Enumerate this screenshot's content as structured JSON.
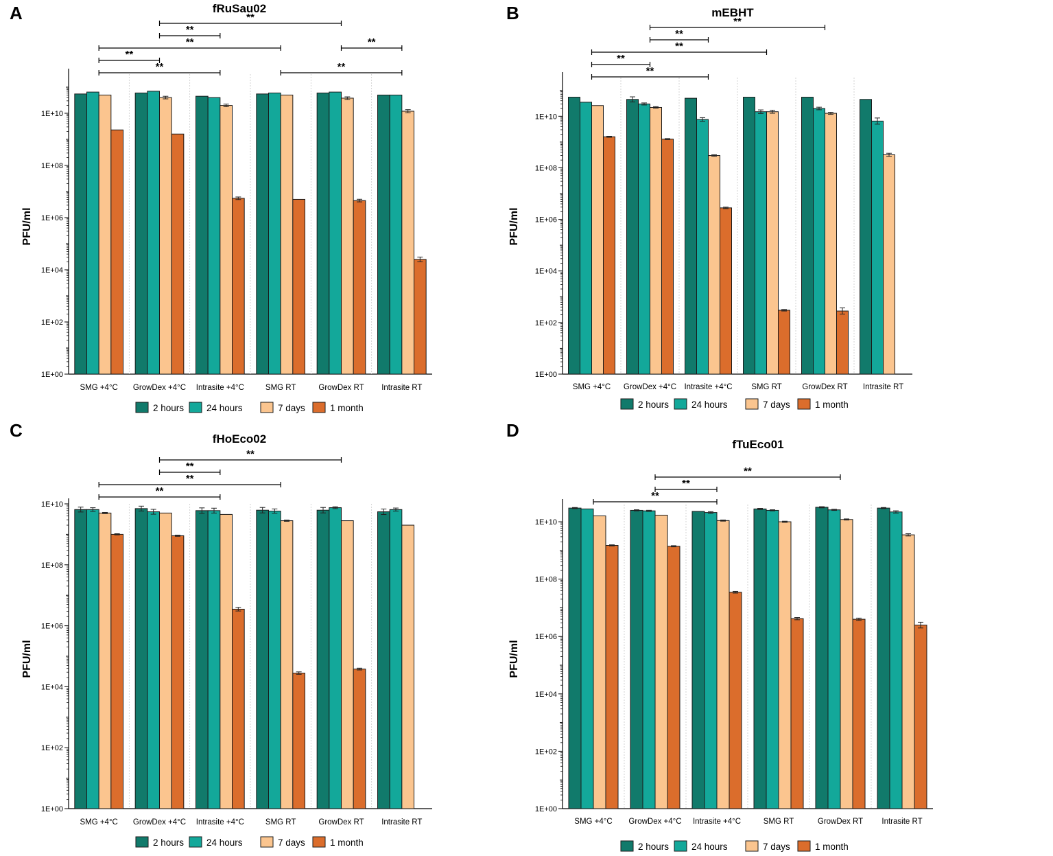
{
  "figure": {
    "ylabel": "PFU/ml",
    "categories": [
      "SMG +4°C",
      "GrowDex +4°C",
      "Intrasite +4°C",
      "SMG RT",
      "GrowDex RT",
      "Intrasite RT"
    ],
    "series": [
      "2 hours",
      "24 hours",
      "7 days",
      "1 month"
    ],
    "colors": {
      "2 hours": "#117a6b",
      "24 hours": "#13a89a",
      "7 days": "#fbc58f",
      "1 month": "#db6d2c"
    },
    "yticks": [
      "1E+00",
      "1E+02",
      "1E+04",
      "1E+06",
      "1E+08",
      "1E+10"
    ],
    "sig_label": "**"
  },
  "chart_data": [
    {
      "panel": "A",
      "title": "fRuSau02",
      "type": "bar",
      "yscale": "log",
      "ylim": [
        1,
        300000000000
      ],
      "ylabel": "PFU/ml",
      "categories": [
        "SMG +4°C",
        "GrowDex +4°C",
        "Intrasite +4°C",
        "SMG RT",
        "GrowDex RT",
        "Intrasite RT"
      ],
      "series": [
        {
          "name": "2 hours",
          "values": [
            55000000000.0,
            60000000000.0,
            45000000000.0,
            55000000000.0,
            60000000000.0,
            50000000000.0
          ],
          "errors": [
            0,
            0,
            0,
            0,
            0,
            0
          ]
        },
        {
          "name": "24 hours",
          "values": [
            65000000000.0,
            70000000000.0,
            40000000000.0,
            60000000000.0,
            65000000000.0,
            50000000000.0
          ],
          "errors": [
            0,
            0,
            0,
            0,
            0,
            0
          ]
        },
        {
          "name": "7 days",
          "values": [
            50000000000.0,
            40000000000.0,
            20000000000.0,
            50000000000.0,
            38000000000.0,
            12000000000.0
          ],
          "errors": [
            0,
            0.05,
            0.05,
            0,
            0.05,
            0.06
          ]
        },
        {
          "name": "1 month",
          "values": [
            2300000000.0,
            1600000000.0,
            5500000.0,
            5000000.0,
            4500000.0,
            25000.0
          ],
          "errors": [
            0,
            0,
            0.05,
            0,
            0.05,
            0.09
          ]
        }
      ],
      "significance": [
        {
          "from": 0,
          "to": 1,
          "level": 1,
          "label": "**"
        },
        {
          "from": 1,
          "to": 2,
          "level": 3,
          "label": "**"
        },
        {
          "from": 1,
          "to": 4,
          "level": 4,
          "label": "**"
        },
        {
          "from": 0,
          "to": 3,
          "level": 2,
          "label": "**"
        },
        {
          "from": 0,
          "to": 2,
          "level": 0,
          "label": "**"
        },
        {
          "from": 3,
          "to": 5,
          "level": 0,
          "label": "**"
        },
        {
          "from": 4,
          "to": 5,
          "level": 2,
          "label": "**"
        }
      ]
    },
    {
      "panel": "B",
      "title": "mEBHT",
      "type": "bar",
      "yscale": "log",
      "ylim": [
        1,
        300000000000
      ],
      "ylabel": "PFU/ml",
      "categories": [
        "SMG +4°C",
        "GrowDex +4°C",
        "Intrasite +4°C",
        "SMG RT",
        "GrowDex RT",
        "Intrasite RT"
      ],
      "series": [
        {
          "name": "2 hours",
          "values": [
            55000000000.0,
            45000000000.0,
            50000000000.0,
            55000000000.0,
            55000000000.0,
            45000000000.0
          ],
          "errors": [
            0,
            0.1,
            0,
            0,
            0,
            0
          ]
        },
        {
          "name": "24 hours",
          "values": [
            35000000000.0,
            30000000000.0,
            7500000000.0,
            15000000000.0,
            20000000000.0,
            6500000000.0
          ],
          "errors": [
            0,
            0.04,
            0.07,
            0.07,
            0.05,
            0.12
          ]
        },
        {
          "name": "7 days",
          "values": [
            26000000000.0,
            22000000000.0,
            300000000.0,
            15000000000.0,
            13000000000.0,
            320000000.0
          ],
          "errors": [
            0,
            0.03,
            0.03,
            0.06,
            0.04,
            0.06
          ]
        },
        {
          "name": "1 month",
          "values": [
            1600000000.0,
            1300000000.0,
            2800000.0,
            300,
            280,
            null
          ],
          "errors": [
            0.02,
            0.02,
            0.03,
            0.03,
            0.12,
            0
          ]
        }
      ],
      "significance": [
        {
          "from": 0,
          "to": 1,
          "level": 1,
          "label": "**"
        },
        {
          "from": 1,
          "to": 2,
          "level": 3,
          "label": "**"
        },
        {
          "from": 1,
          "to": 4,
          "level": 4,
          "label": "**"
        },
        {
          "from": 0,
          "to": 3,
          "level": 2,
          "label": "**"
        },
        {
          "from": 0,
          "to": 2,
          "level": 0,
          "label": "**"
        }
      ]
    },
    {
      "panel": "C",
      "title": "fHoEco02",
      "type": "bar",
      "yscale": "log",
      "ylim": [
        1,
        10000000000
      ],
      "ylabel": "PFU/ml",
      "categories": [
        "SMG +4°C",
        "GrowDex +4°C",
        "Intrasite +4°C",
        "SMG RT",
        "GrowDex RT",
        "Intrasite RT"
      ],
      "series": [
        {
          "name": "2 hours",
          "values": [
            6500000000.0,
            7000000000.0,
            6000000000.0,
            6200000000.0,
            6200000000.0,
            5500000000.0
          ],
          "errors": [
            0.08,
            0.08,
            0.09,
            0.09,
            0.09,
            0.09
          ]
        },
        {
          "name": "24 hours",
          "values": [
            6500000000.0,
            5500000000.0,
            6000000000.0,
            5800000000.0,
            7500000000.0,
            6500000000.0
          ],
          "errors": [
            0.06,
            0.08,
            0.08,
            0.07,
            0.03,
            0.05
          ]
        },
        {
          "name": "7 days",
          "values": [
            5000000000.0,
            5000000000.0,
            4500000000.0,
            2800000000.0,
            2800000000.0,
            2000000000.0
          ],
          "errors": [
            0.02,
            0,
            0,
            0.02,
            0,
            0
          ]
        },
        {
          "name": "1 month",
          "values": [
            1000000000.0,
            900000000.0,
            3500000.0,
            28000.0,
            38000.0,
            null
          ],
          "errors": [
            0.02,
            0.02,
            0.06,
            0.04,
            0.03,
            0
          ]
        }
      ],
      "significance": [
        {
          "from": 0,
          "to": 2,
          "level": 0,
          "label": "**"
        },
        {
          "from": 0,
          "to": 3,
          "level": 1,
          "label": "**"
        },
        {
          "from": 1,
          "to": 2,
          "level": 2,
          "label": "**"
        },
        {
          "from": 1,
          "to": 4,
          "level": 3,
          "label": "**"
        }
      ]
    },
    {
      "panel": "D",
      "title": "fTuEco01",
      "type": "bar",
      "yscale": "log",
      "ylim": [
        1,
        100000000000
      ],
      "ylabel": "PFU/ml",
      "categories": [
        "SMG +4°C",
        "GrowDex +4°C",
        "Intrasite +4°C",
        "SMG RT",
        "GrowDex RT",
        "Intrasite RT"
      ],
      "series": [
        {
          "name": "2 hours",
          "values": [
            30000000000.0,
            25000000000.0,
            23000000000.0,
            28000000000.0,
            32000000000.0,
            30000000000.0
          ],
          "errors": [
            0.02,
            0.02,
            0,
            0.02,
            0.02,
            0.02
          ]
        },
        {
          "name": "24 hours",
          "values": [
            28000000000.0,
            24000000000.0,
            21000000000.0,
            25000000000.0,
            26000000000.0,
            22000000000.0
          ],
          "errors": [
            0,
            0.02,
            0.03,
            0.02,
            0.02,
            0.04
          ]
        },
        {
          "name": "7 days",
          "values": [
            16000000000.0,
            17000000000.0,
            11000000000.0,
            10000000000.0,
            12000000000.0,
            3500000000.0
          ],
          "errors": [
            0,
            0,
            0.02,
            0.02,
            0.02,
            0.04
          ]
        },
        {
          "name": "1 month",
          "values": [
            1500000000.0,
            1400000000.0,
            35000000.0,
            4200000.0,
            4000000.0,
            2500000.0
          ],
          "errors": [
            0.02,
            0.02,
            0.03,
            0.04,
            0.04,
            0.1
          ]
        }
      ],
      "significance": [
        {
          "from": 0,
          "to": 2,
          "level": 0,
          "label": "**"
        },
        {
          "from": 1,
          "to": 2,
          "level": 1,
          "label": "**"
        },
        {
          "from": 1,
          "to": 4,
          "level": 2,
          "label": "**"
        }
      ]
    }
  ]
}
